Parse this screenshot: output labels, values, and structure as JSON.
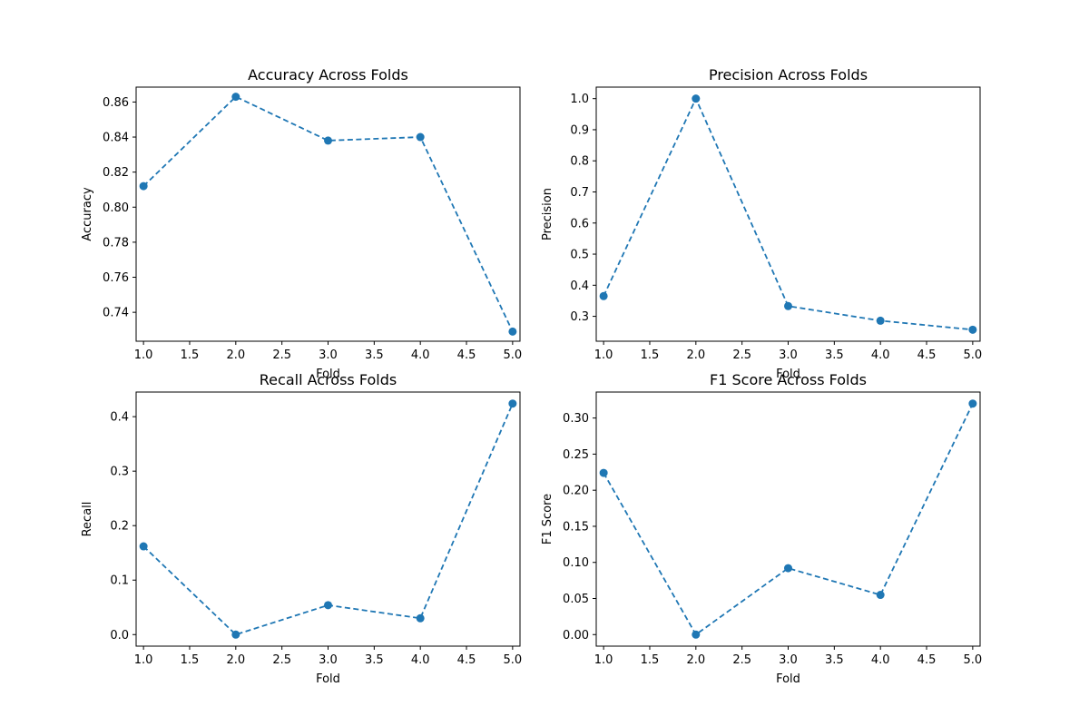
{
  "chart_data": [
    {
      "type": "line",
      "title": "Accuracy Across Folds",
      "xlabel": "Fold",
      "ylabel": "Accuracy",
      "x": [
        1,
        2,
        3,
        4,
        5
      ],
      "series": [
        {
          "values": [
            0.812,
            0.863,
            0.838,
            0.84,
            0.729
          ]
        }
      ],
      "xlim": [
        0.92,
        5.08
      ],
      "ylim": [
        0.7235,
        0.8685
      ],
      "xticks": [
        1.0,
        1.5,
        2.0,
        2.5,
        3.0,
        3.5,
        4.0,
        4.5,
        5.0
      ],
      "xtick_labels": [
        "1.0",
        "1.5",
        "2.0",
        "2.5",
        "3.0",
        "3.5",
        "4.0",
        "4.5",
        "5.0"
      ],
      "yticks": [
        0.74,
        0.76,
        0.78,
        0.8,
        0.82,
        0.84,
        0.86
      ],
      "ytick_labels": [
        "0.74",
        "0.76",
        "0.78",
        "0.80",
        "0.82",
        "0.84",
        "0.86"
      ],
      "line_style": "dashed",
      "marker": "circle",
      "grid": false,
      "legend": "none",
      "color": "#1f77b4"
    },
    {
      "type": "line",
      "title": "Precision Across Folds",
      "xlabel": "Fold",
      "ylabel": "Precision",
      "x": [
        1,
        2,
        3,
        4,
        5
      ],
      "series": [
        {
          "values": [
            0.365,
            1.0,
            0.333,
            0.286,
            0.257
          ]
        }
      ],
      "xlim": [
        0.92,
        5.08
      ],
      "ylim": [
        0.22,
        1.037
      ],
      "xticks": [
        1.0,
        1.5,
        2.0,
        2.5,
        3.0,
        3.5,
        4.0,
        4.5,
        5.0
      ],
      "xtick_labels": [
        "1.0",
        "1.5",
        "2.0",
        "2.5",
        "3.0",
        "3.5",
        "4.0",
        "4.5",
        "5.0"
      ],
      "yticks": [
        0.3,
        0.4,
        0.5,
        0.6,
        0.7,
        0.8,
        0.9,
        1.0
      ],
      "ytick_labels": [
        "0.3",
        "0.4",
        "0.5",
        "0.6",
        "0.7",
        "0.8",
        "0.9",
        "1.0"
      ],
      "line_style": "dashed",
      "marker": "circle",
      "grid": false,
      "legend": "none",
      "color": "#1f77b4"
    },
    {
      "type": "line",
      "title": "Recall Across Folds",
      "xlabel": "Fold",
      "ylabel": "Recall",
      "x": [
        1,
        2,
        3,
        4,
        5
      ],
      "series": [
        {
          "values": [
            0.162,
            0.0,
            0.054,
            0.03,
            0.424
          ]
        }
      ],
      "xlim": [
        0.92,
        5.08
      ],
      "ylim": [
        -0.0212,
        0.4452
      ],
      "xticks": [
        1.0,
        1.5,
        2.0,
        2.5,
        3.0,
        3.5,
        4.0,
        4.5,
        5.0
      ],
      "xtick_labels": [
        "1.0",
        "1.5",
        "2.0",
        "2.5",
        "3.0",
        "3.5",
        "4.0",
        "4.5",
        "5.0"
      ],
      "yticks": [
        0.0,
        0.1,
        0.2,
        0.3,
        0.4
      ],
      "ytick_labels": [
        "0.0",
        "0.1",
        "0.2",
        "0.3",
        "0.4"
      ],
      "line_style": "dashed",
      "marker": "circle",
      "grid": false,
      "legend": "none",
      "color": "#1f77b4"
    },
    {
      "type": "line",
      "title": "F1 Score Across Folds",
      "xlabel": "Fold",
      "ylabel": "F1 Score",
      "x": [
        1,
        2,
        3,
        4,
        5
      ],
      "series": [
        {
          "values": [
            0.224,
            0.0,
            0.092,
            0.055,
            0.32
          ]
        }
      ],
      "xlim": [
        0.92,
        5.08
      ],
      "ylim": [
        -0.016,
        0.336
      ],
      "xticks": [
        1.0,
        1.5,
        2.0,
        2.5,
        3.0,
        3.5,
        4.0,
        4.5,
        5.0
      ],
      "xtick_labels": [
        "1.0",
        "1.5",
        "2.0",
        "2.5",
        "3.0",
        "3.5",
        "4.0",
        "4.5",
        "5.0"
      ],
      "yticks": [
        0.0,
        0.05,
        0.1,
        0.15,
        0.2,
        0.25,
        0.3
      ],
      "ytick_labels": [
        "0.00",
        "0.05",
        "0.10",
        "0.15",
        "0.20",
        "0.25",
        "0.30"
      ],
      "line_style": "dashed",
      "marker": "circle",
      "grid": false,
      "legend": "none",
      "color": "#1f77b4"
    }
  ]
}
